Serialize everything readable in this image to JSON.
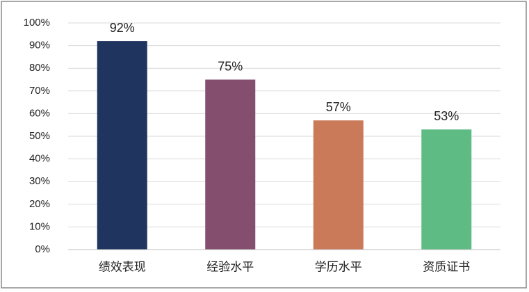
{
  "chart_data": {
    "type": "bar",
    "categories": [
      "绩效表现",
      "经验水平",
      "学历水平",
      "资质证书"
    ],
    "values": [
      92,
      75,
      57,
      53
    ],
    "value_labels": [
      "92%",
      "75%",
      "57%",
      "53%"
    ],
    "colors": [
      "#1f3560",
      "#844e6e",
      "#cb7a59",
      "#5fbb84"
    ],
    "ylim": [
      0,
      100
    ],
    "yticks": [
      {
        "value": 0,
        "label": "0%"
      },
      {
        "value": 10,
        "label": "10%"
      },
      {
        "value": 20,
        "label": "20%"
      },
      {
        "value": 30,
        "label": "30%"
      },
      {
        "value": 40,
        "label": "40%"
      },
      {
        "value": 50,
        "label": "50%"
      },
      {
        "value": 60,
        "label": "60%"
      },
      {
        "value": 70,
        "label": "70%"
      },
      {
        "value": 80,
        "label": "80%"
      },
      {
        "value": 90,
        "label": "90%"
      },
      {
        "value": 100,
        "label": "100%"
      }
    ],
    "grid": true
  }
}
